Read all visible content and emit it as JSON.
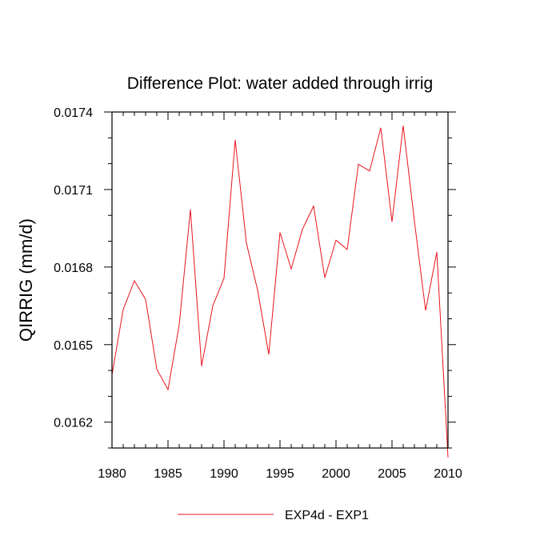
{
  "chart_data": {
    "type": "line",
    "title": "Difference Plot: water added through irrig",
    "xlabel": "",
    "ylabel": "QIRRIG  (mm/d)",
    "xlim": [
      1980,
      2010
    ],
    "ylim": [
      0.0161,
      0.0174
    ],
    "x_ticks": [
      1980,
      1985,
      1990,
      1995,
      2000,
      2005,
      2010
    ],
    "x_tick_labels": [
      "1980",
      "1985",
      "1990",
      "1995",
      "2000",
      "2005",
      "2010"
    ],
    "y_ticks": [
      0.0162,
      0.0165,
      0.0168,
      0.0171,
      0.0174
    ],
    "y_tick_labels": [
      "0.0162",
      "0.0165",
      "0.0168",
      "0.0171",
      "0.0174"
    ],
    "legend": {
      "position": "bottom-center"
    },
    "series": [
      {
        "name": "EXP4d - EXP1",
        "color": "#e8141b",
        "x": [
          1980,
          1981,
          1982,
          1983,
          1984,
          1985,
          1986,
          1987,
          1988,
          1989,
          1990,
          1991,
          1992,
          1993,
          1994,
          1995,
          1996,
          1997,
          1998,
          1999,
          2000,
          2001,
          2002,
          2003,
          2004,
          2005,
          2006,
          2007,
          2008,
          2009,
          2010
        ],
        "values": [
          0.016383,
          0.016636,
          0.016747,
          0.016675,
          0.016405,
          0.016326,
          0.016576,
          0.017023,
          0.016417,
          0.01665,
          0.016757,
          0.017292,
          0.016893,
          0.016711,
          0.016462,
          0.016934,
          0.016793,
          0.016946,
          0.017036,
          0.016759,
          0.016904,
          0.016868,
          0.017198,
          0.017172,
          0.017339,
          0.016975,
          0.017347,
          0.016978,
          0.016632,
          0.016858,
          0.016064
        ]
      }
    ]
  }
}
